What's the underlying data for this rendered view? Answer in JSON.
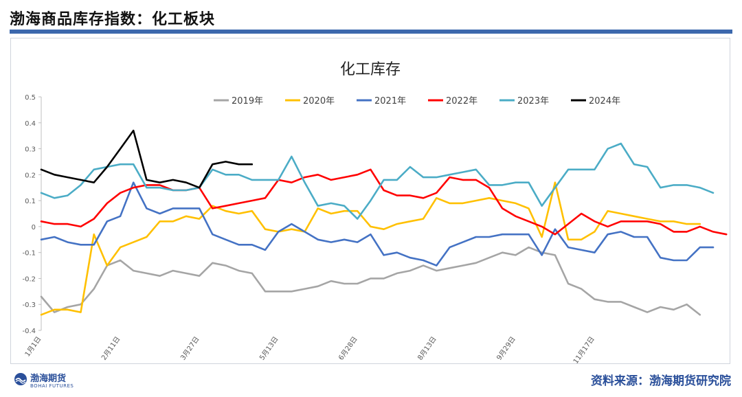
{
  "page": {
    "title": "渤海商品库存指数：化工板块",
    "source": "资料来源：渤海期货研究院",
    "logo_cn": "渤海期货",
    "logo_en": "BOHAI FUTURES",
    "accent_color": "#3c68ad"
  },
  "chart_data": {
    "type": "line",
    "title": "化工库存",
    "ylim": [
      -0.4,
      0.5
    ],
    "yticks": [
      -0.4,
      -0.3,
      -0.2,
      -0.1,
      0,
      0.1,
      0.2,
      0.3,
      0.4,
      0.5
    ],
    "ytick_labels": [
      "-0.4",
      "-0.3",
      "-0.2",
      "-0.1",
      "0",
      "0.1",
      "0.2",
      "0.3",
      "0.4",
      "0.5"
    ],
    "x_tick_labels": [
      "1月1日",
      "2月11日",
      "3月27日",
      "5月13日",
      "6月28日",
      "8月13日",
      "9月29日",
      "11月17日"
    ],
    "x_tick_index": [
      0,
      6,
      12,
      18,
      24,
      30,
      36,
      42
    ],
    "legend_position": "top",
    "grid": false,
    "series": [
      {
        "name": "2019年",
        "color": "#a5a5a5",
        "values": [
          -0.27,
          -0.33,
          -0.31,
          -0.3,
          -0.24,
          -0.15,
          -0.13,
          -0.17,
          -0.18,
          -0.19,
          -0.17,
          -0.18,
          -0.19,
          -0.14,
          -0.15,
          -0.17,
          -0.18,
          -0.25,
          -0.25,
          -0.25,
          -0.24,
          -0.23,
          -0.21,
          -0.22,
          -0.22,
          -0.2,
          -0.2,
          -0.18,
          -0.17,
          -0.15,
          -0.17,
          -0.16,
          -0.15,
          -0.14,
          -0.12,
          -0.1,
          -0.11,
          -0.08,
          -0.1,
          -0.11,
          -0.22,
          -0.24,
          -0.28,
          -0.29,
          -0.29,
          -0.31,
          -0.33,
          -0.31,
          -0.32,
          -0.3,
          -0.34
        ]
      },
      {
        "name": "2020年",
        "color": "#ffc000",
        "values": [
          -0.34,
          -0.32,
          -0.32,
          -0.33,
          -0.03,
          -0.15,
          -0.08,
          -0.06,
          -0.04,
          0.02,
          0.02,
          0.04,
          0.03,
          0.08,
          0.06,
          0.05,
          0.06,
          -0.01,
          -0.02,
          -0.01,
          -0.02,
          0.07,
          0.05,
          0.06,
          0.06,
          0.0,
          -0.01,
          0.01,
          0.02,
          0.03,
          0.11,
          0.09,
          0.09,
          0.1,
          0.11,
          0.1,
          0.09,
          0.07,
          -0.04,
          0.17,
          -0.05,
          -0.05,
          -0.02,
          0.06,
          0.05,
          0.04,
          0.03,
          0.02,
          0.02,
          0.01,
          0.01
        ]
      },
      {
        "name": "2021年",
        "color": "#4472c4",
        "values": [
          -0.05,
          -0.04,
          -0.06,
          -0.07,
          -0.07,
          0.02,
          0.04,
          0.17,
          0.07,
          0.05,
          0.07,
          0.07,
          0.07,
          -0.03,
          -0.05,
          -0.07,
          -0.07,
          -0.09,
          -0.02,
          0.01,
          -0.02,
          -0.05,
          -0.06,
          -0.05,
          -0.06,
          -0.03,
          -0.11,
          -0.1,
          -0.12,
          -0.13,
          -0.15,
          -0.08,
          -0.06,
          -0.04,
          -0.04,
          -0.03,
          -0.03,
          -0.03,
          -0.11,
          -0.01,
          -0.08,
          -0.09,
          -0.1,
          -0.03,
          -0.02,
          -0.04,
          -0.04,
          -0.12,
          -0.13,
          -0.13,
          -0.08,
          -0.08
        ]
      },
      {
        "name": "2022年",
        "color": "#ff0000",
        "values": [
          0.02,
          0.01,
          0.01,
          0.0,
          0.03,
          0.09,
          0.13,
          0.15,
          0.16,
          0.16,
          0.14,
          0.14,
          0.15,
          0.07,
          0.08,
          0.09,
          0.1,
          0.11,
          0.18,
          0.17,
          0.19,
          0.2,
          0.18,
          0.19,
          0.2,
          0.22,
          0.14,
          0.12,
          0.12,
          0.11,
          0.13,
          0.19,
          0.18,
          0.18,
          0.15,
          0.07,
          0.04,
          0.02,
          0.0,
          -0.03,
          0.01,
          0.05,
          0.02,
          0.0,
          0.02,
          0.02,
          0.02,
          0.01,
          -0.02,
          -0.02,
          0.0,
          -0.02,
          -0.03
        ]
      },
      {
        "name": "2023年",
        "color": "#4bacc6",
        "values": [
          0.13,
          0.11,
          0.12,
          0.16,
          0.22,
          0.23,
          0.24,
          0.24,
          0.15,
          0.15,
          0.14,
          0.14,
          0.15,
          0.22,
          0.2,
          0.2,
          0.18,
          0.18,
          0.18,
          0.27,
          0.17,
          0.08,
          0.09,
          0.08,
          0.03,
          0.1,
          0.18,
          0.18,
          0.23,
          0.19,
          0.19,
          0.2,
          0.21,
          0.22,
          0.16,
          0.16,
          0.17,
          0.17,
          0.08,
          0.15,
          0.22,
          0.22,
          0.22,
          0.3,
          0.32,
          0.24,
          0.23,
          0.15,
          0.16,
          0.16,
          0.15,
          0.13
        ]
      },
      {
        "name": "2024年",
        "color": "#000000",
        "values": [
          0.22,
          0.2,
          0.19,
          0.18,
          0.17,
          0.23,
          0.3,
          0.37,
          0.18,
          0.17,
          0.18,
          0.17,
          0.15,
          0.24,
          0.25,
          0.24,
          0.24
        ]
      }
    ]
  }
}
